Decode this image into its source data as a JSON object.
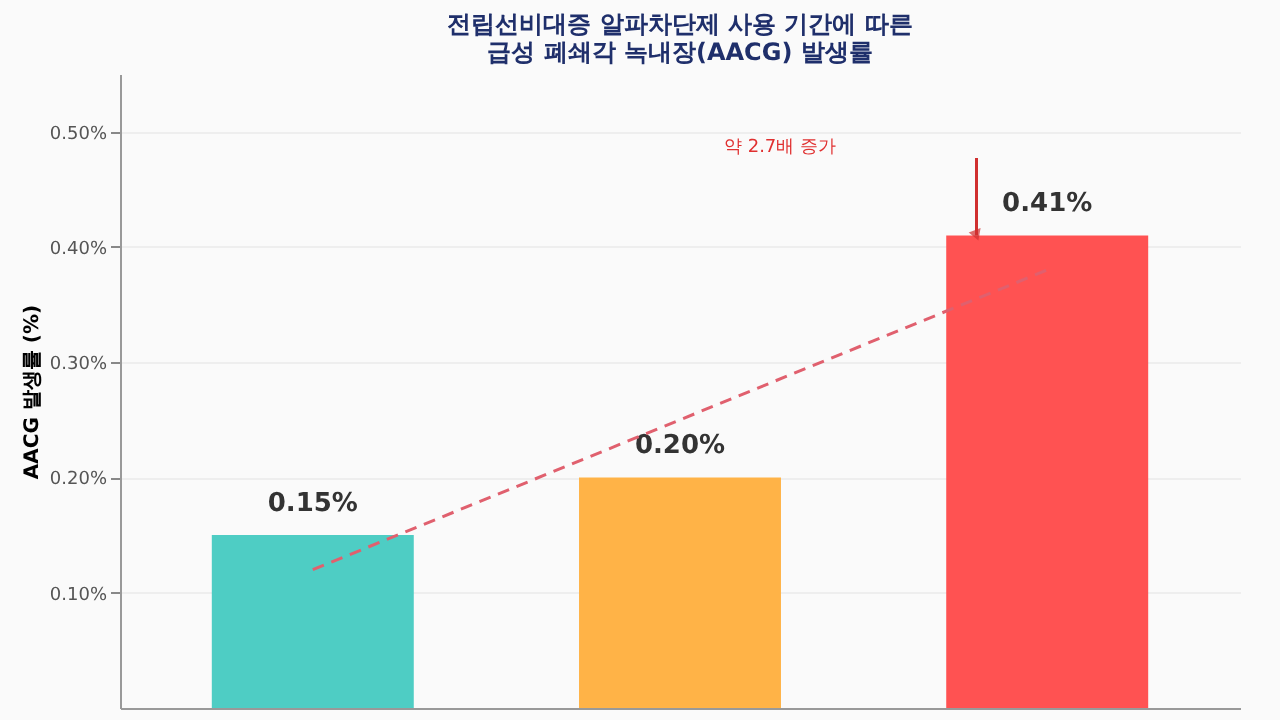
{
  "chart_data": {
    "type": "bar",
    "title": "전립선비대증 알파차단제 사용 기간에 따른\n급성 폐쇄각 녹내장(AACG) 발생률",
    "ylabel": "AACG 발생률 (%)",
    "categories": [
      null,
      null,
      null
    ],
    "series": [
      {
        "colors": [
          "#4ecdc4",
          "#ffb347",
          "#ff5252"
        ],
        "values": [
          0.15,
          0.2,
          0.41
        ],
        "value_labels": [
          "0.15%",
          "0.20%",
          "0.41%"
        ]
      },
      {
        "type": "line",
        "color": "#e0606e",
        "line_style": "dashed",
        "values": [
          0.12,
          0.25,
          0.38
        ]
      }
    ],
    "annotations": [
      "약 2.7배 증가"
    ],
    "ylim": [
      0,
      0.55
    ],
    "yticks": [
      {
        "value": 0.1,
        "label": "0.10%"
      },
      {
        "value": 0.2,
        "label": "0.20%"
      },
      {
        "value": 0.3,
        "label": "0.30%"
      },
      {
        "value": 0.4,
        "label": "0.40%"
      },
      {
        "value": 0.5,
        "label": "0.50%"
      }
    ],
    "grid": "y",
    "tick_labels": "y"
  }
}
